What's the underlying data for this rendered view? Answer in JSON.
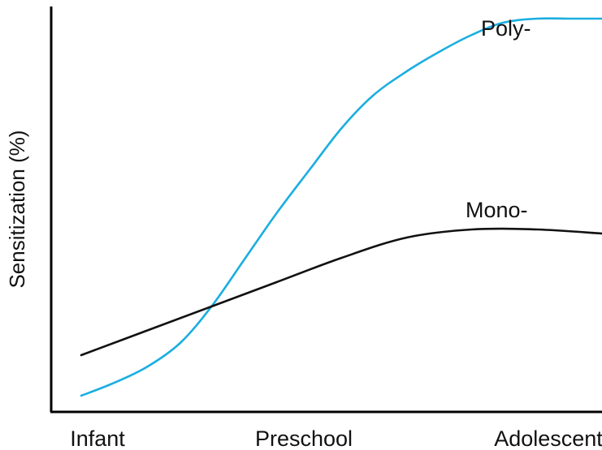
{
  "chart_data": {
    "type": "line",
    "title": "",
    "xlabel": "",
    "ylabel": "Sensitization (%)",
    "categories": [
      "Infant",
      "Preschool",
      "Adolescent"
    ],
    "xlim": [
      0,
      2
    ],
    "ylim": [
      0,
      100
    ],
    "grid": false,
    "legend": "inline",
    "series": [
      {
        "name": "Poly-",
        "color": "#1AAEE0",
        "x": [
          0,
          0.12,
          0.25,
          0.38,
          0.5,
          0.62,
          0.75,
          0.88,
          1.0,
          1.12,
          1.25,
          1.38,
          1.5,
          1.62,
          1.75,
          1.88,
          2.0
        ],
        "values": [
          4,
          7,
          11,
          17,
          26,
          37,
          49,
          60,
          70,
          78,
          84,
          89,
          93,
          96,
          97,
          97,
          97
        ]
      },
      {
        "name": "Mono-",
        "color": "#111111",
        "x": [
          0,
          0.25,
          0.5,
          0.75,
          1.0,
          1.25,
          1.5,
          1.75,
          2.0
        ],
        "values": [
          14,
          20,
          26,
          32,
          38,
          43,
          45,
          45,
          44
        ]
      }
    ]
  }
}
